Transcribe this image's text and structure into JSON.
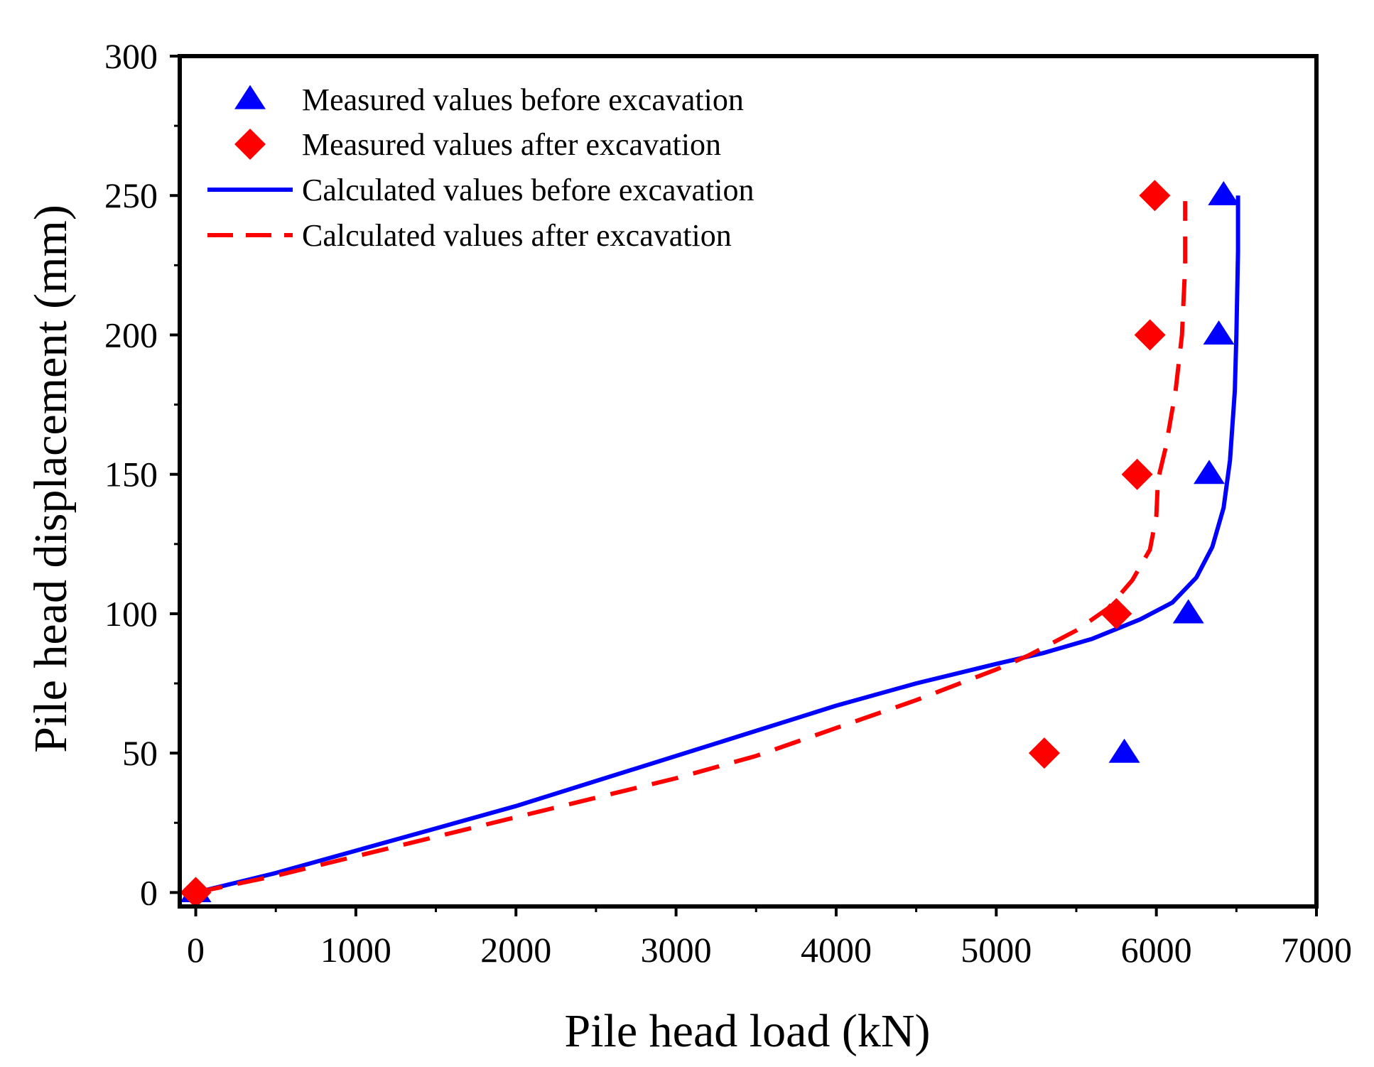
{
  "chart_data": {
    "type": "scatter",
    "title": "",
    "xlabel": "Pile head load (kN)",
    "ylabel": "Pile head displacement (mm)",
    "xlim": [
      -100,
      7000
    ],
    "ylim": [
      -5,
      300
    ],
    "xticks": [
      0,
      1000,
      2000,
      3000,
      4000,
      5000,
      6000,
      7000
    ],
    "yticks": [
      0,
      50,
      100,
      150,
      200,
      250,
      300
    ],
    "xtick_labels": [
      "0",
      "1000",
      "2000",
      "3000",
      "4000",
      "5000",
      "6000",
      "7000"
    ],
    "ytick_labels": [
      "0",
      "50",
      "100",
      "150",
      "200",
      "250",
      "300"
    ],
    "grid": false,
    "legend_position": "top-left",
    "series": [
      {
        "name": "Measured values before excavation",
        "kind": "scatter",
        "marker": "triangle",
        "color": "#0000ff",
        "points": [
          [
            0,
            0
          ],
          [
            5800,
            50
          ],
          [
            6200,
            100
          ],
          [
            6330,
            150
          ],
          [
            6390,
            200
          ],
          [
            6420,
            250
          ]
        ]
      },
      {
        "name": "Measured values after excavation",
        "kind": "scatter",
        "marker": "diamond",
        "color": "#ff0000",
        "points": [
          [
            0,
            0
          ],
          [
            5300,
            50
          ],
          [
            5750,
            100
          ],
          [
            5880,
            150
          ],
          [
            5960,
            200
          ],
          [
            5990,
            250
          ]
        ]
      },
      {
        "name": "Calculated values before excavation",
        "kind": "line",
        "dash": "solid",
        "color": "#0000ff",
        "points": [
          [
            0,
            0
          ],
          [
            500,
            7
          ],
          [
            1000,
            15
          ],
          [
            1500,
            23
          ],
          [
            2000,
            31
          ],
          [
            2500,
            40
          ],
          [
            3000,
            49
          ],
          [
            3500,
            58
          ],
          [
            4000,
            67
          ],
          [
            4500,
            75
          ],
          [
            5000,
            82
          ],
          [
            5300,
            86
          ],
          [
            5600,
            91
          ],
          [
            5900,
            98
          ],
          [
            6100,
            104
          ],
          [
            6250,
            113
          ],
          [
            6350,
            124
          ],
          [
            6420,
            138
          ],
          [
            6460,
            155
          ],
          [
            6490,
            180
          ],
          [
            6500,
            200
          ],
          [
            6510,
            230
          ],
          [
            6510,
            250
          ]
        ]
      },
      {
        "name": "Calculated values after excavation",
        "kind": "line",
        "dash": "dashed",
        "color": "#ff0000",
        "points": [
          [
            0,
            0
          ],
          [
            500,
            6
          ],
          [
            1000,
            13
          ],
          [
            1500,
            20
          ],
          [
            2000,
            27
          ],
          [
            2500,
            34
          ],
          [
            3000,
            41
          ],
          [
            3500,
            49
          ],
          [
            4000,
            59
          ],
          [
            4500,
            69
          ],
          [
            5000,
            80
          ],
          [
            5200,
            85
          ],
          [
            5500,
            94
          ],
          [
            5700,
            102
          ],
          [
            5850,
            112
          ],
          [
            5960,
            123
          ],
          [
            6000,
            135
          ],
          [
            6010,
            148
          ],
          [
            6060,
            160
          ],
          [
            6120,
            180
          ],
          [
            6160,
            200
          ],
          [
            6180,
            225
          ],
          [
            6180,
            248
          ]
        ]
      }
    ]
  }
}
